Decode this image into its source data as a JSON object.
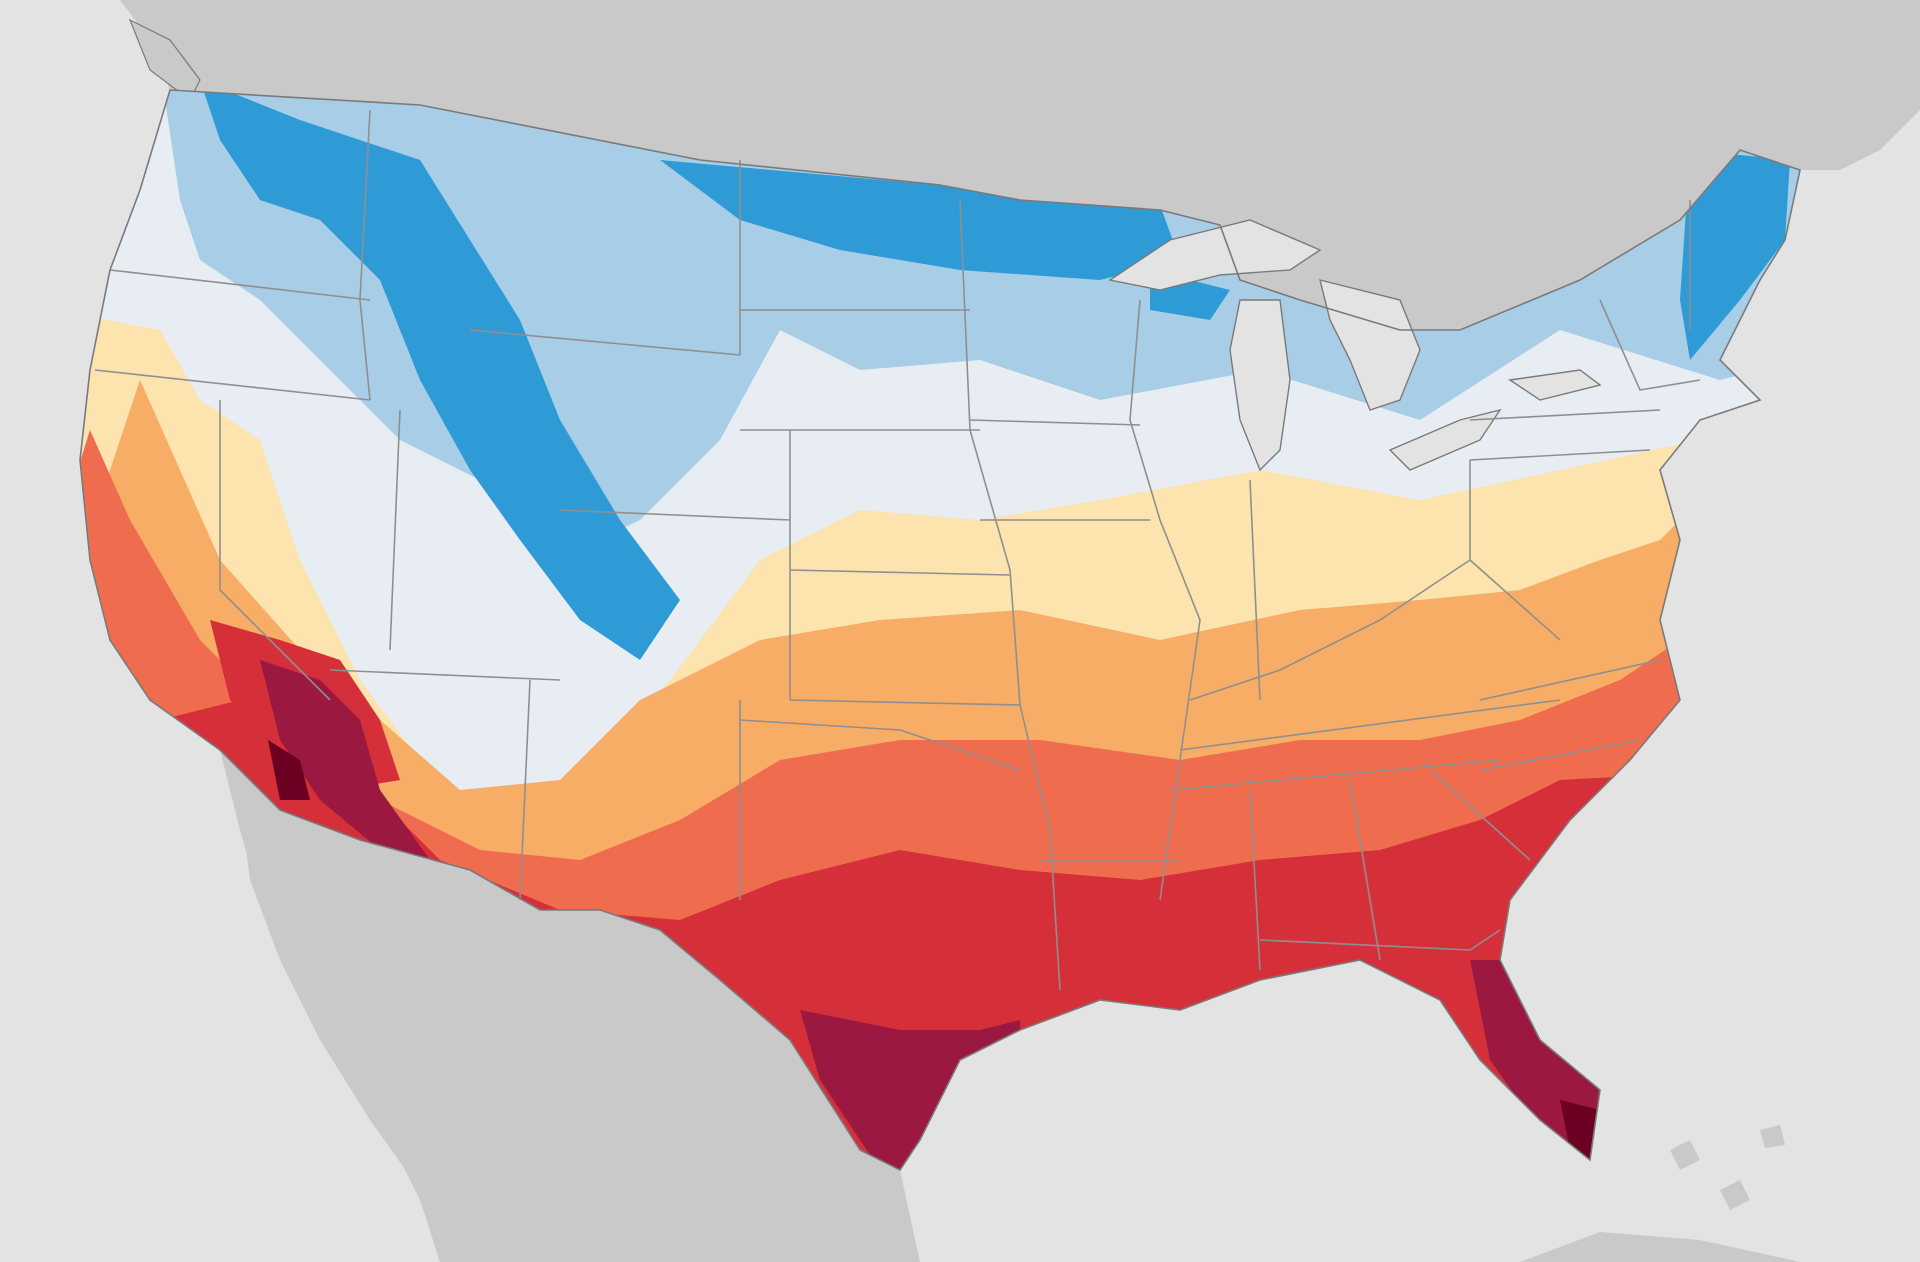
{
  "map": {
    "type": "choropleth",
    "subject": "contiguous-united-states",
    "legend": null,
    "colors": {
      "ocean": "#e3e3e3",
      "land_outside": "#c9c9c9",
      "lake": "#e3e3e3",
      "class_1": "#2f9bd6",
      "class_2": "#a8cde6",
      "class_3": "#e8edf4",
      "class_4": "#fde3ad",
      "class_5": "#f7ad66",
      "class_6": "#f06c4e",
      "class_7": "#d5303a",
      "class_8": "#9b1840",
      "class_9": "#6b0022",
      "state_border": "#8f8f8f"
    }
  }
}
